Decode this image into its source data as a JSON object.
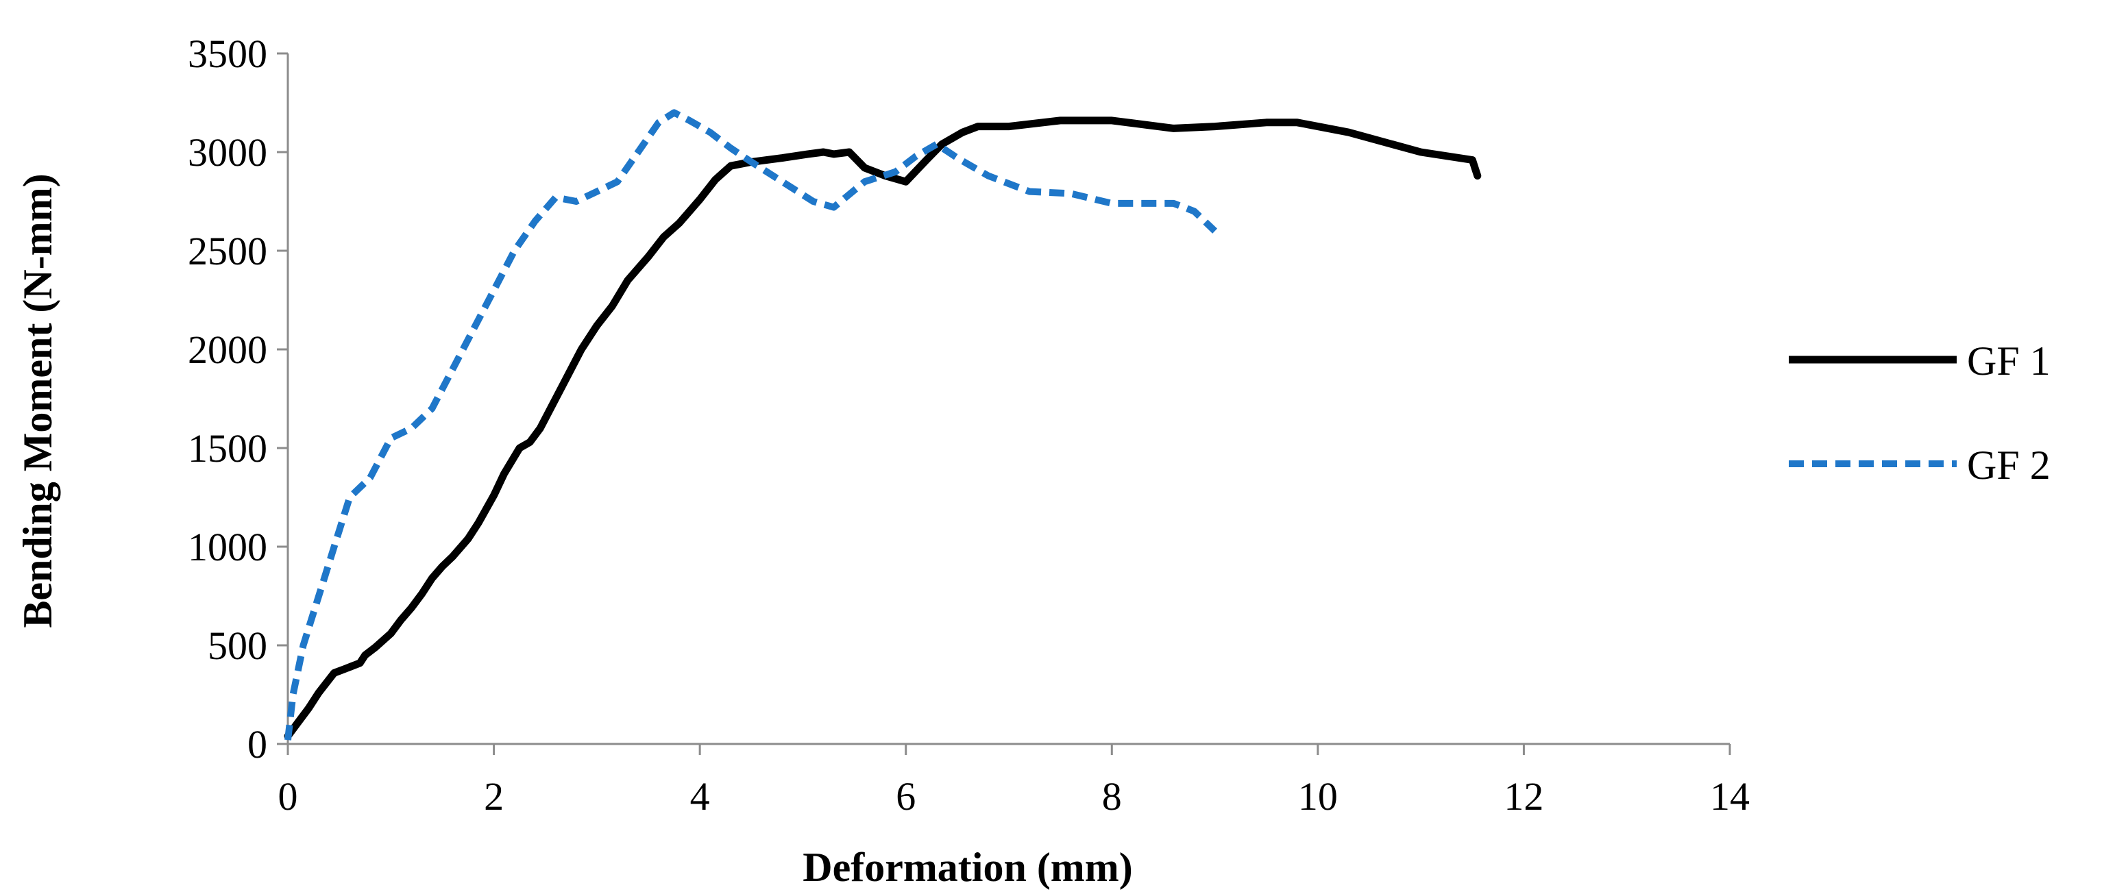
{
  "chart_data": {
    "type": "line",
    "title": "",
    "xlabel": "Deformation (mm)",
    "ylabel": "Bending Moment (N-mm)",
    "xlim": [
      0,
      14
    ],
    "ylim": [
      0,
      3500
    ],
    "x_ticks": [
      0,
      2,
      4,
      6,
      8,
      10,
      12,
      14
    ],
    "y_ticks": [
      0,
      500,
      1000,
      1500,
      2000,
      2500,
      3000,
      3500
    ],
    "grid": false,
    "legend_position": "right",
    "series": [
      {
        "name": "GF 1",
        "color": "#000000",
        "style": "solid",
        "points": [
          [
            0,
            40
          ],
          [
            0.1,
            110
          ],
          [
            0.2,
            180
          ],
          [
            0.3,
            260
          ],
          [
            0.45,
            360
          ],
          [
            0.55,
            380
          ],
          [
            0.7,
            410
          ],
          [
            0.75,
            450
          ],
          [
            0.85,
            490
          ],
          [
            1,
            560
          ],
          [
            1.1,
            630
          ],
          [
            1.2,
            690
          ],
          [
            1.3,
            760
          ],
          [
            1.4,
            840
          ],
          [
            1.5,
            900
          ],
          [
            1.6,
            950
          ],
          [
            1.75,
            1040
          ],
          [
            1.85,
            1120
          ],
          [
            2,
            1260
          ],
          [
            2.1,
            1370
          ],
          [
            2.25,
            1500
          ],
          [
            2.35,
            1530
          ],
          [
            2.45,
            1600
          ],
          [
            2.55,
            1700
          ],
          [
            2.7,
            1850
          ],
          [
            2.85,
            2000
          ],
          [
            3,
            2120
          ],
          [
            3.15,
            2220
          ],
          [
            3.3,
            2350
          ],
          [
            3.5,
            2470
          ],
          [
            3.65,
            2570
          ],
          [
            3.8,
            2640
          ],
          [
            4,
            2760
          ],
          [
            4.15,
            2860
          ],
          [
            4.3,
            2930
          ],
          [
            4.5,
            2950
          ],
          [
            4.8,
            2970
          ],
          [
            5.05,
            2990
          ],
          [
            5.2,
            3000
          ],
          [
            5.3,
            2990
          ],
          [
            5.45,
            3000
          ],
          [
            5.6,
            2920
          ],
          [
            5.8,
            2880
          ],
          [
            6,
            2850
          ],
          [
            6.2,
            2960
          ],
          [
            6.35,
            3040
          ],
          [
            6.55,
            3100
          ],
          [
            6.7,
            3130
          ],
          [
            7,
            3130
          ],
          [
            7.5,
            3160
          ],
          [
            8,
            3160
          ],
          [
            8.6,
            3120
          ],
          [
            9,
            3130
          ],
          [
            9.5,
            3150
          ],
          [
            9.8,
            3150
          ],
          [
            10.3,
            3100
          ],
          [
            11,
            3000
          ],
          [
            11.5,
            2960
          ],
          [
            11.55,
            2880
          ]
        ]
      },
      {
        "name": "GF 2",
        "color": "#1f77c9",
        "style": "dashed",
        "points": [
          [
            0,
            20
          ],
          [
            0.05,
            250
          ],
          [
            0.15,
            500
          ],
          [
            0.3,
            750
          ],
          [
            0.45,
            1000
          ],
          [
            0.6,
            1250
          ],
          [
            0.8,
            1350
          ],
          [
            1,
            1550
          ],
          [
            1.2,
            1600
          ],
          [
            1.4,
            1700
          ],
          [
            1.6,
            1900
          ],
          [
            1.8,
            2100
          ],
          [
            2,
            2300
          ],
          [
            2.2,
            2500
          ],
          [
            2.4,
            2650
          ],
          [
            2.6,
            2770
          ],
          [
            2.8,
            2750
          ],
          [
            3,
            2800
          ],
          [
            3.2,
            2850
          ],
          [
            3.4,
            3000
          ],
          [
            3.6,
            3150
          ],
          [
            3.75,
            3200
          ],
          [
            3.9,
            3160
          ],
          [
            4.1,
            3100
          ],
          [
            4.3,
            3020
          ],
          [
            4.5,
            2950
          ],
          [
            4.8,
            2850
          ],
          [
            5.1,
            2750
          ],
          [
            5.3,
            2720
          ],
          [
            5.6,
            2850
          ],
          [
            5.9,
            2900
          ],
          [
            6.1,
            2980
          ],
          [
            6.3,
            3040
          ],
          [
            6.5,
            2970
          ],
          [
            6.8,
            2880
          ],
          [
            7.2,
            2800
          ],
          [
            7.6,
            2790
          ],
          [
            8,
            2740
          ],
          [
            8.6,
            2740
          ],
          [
            8.8,
            2700
          ],
          [
            9,
            2600
          ]
        ]
      }
    ]
  }
}
